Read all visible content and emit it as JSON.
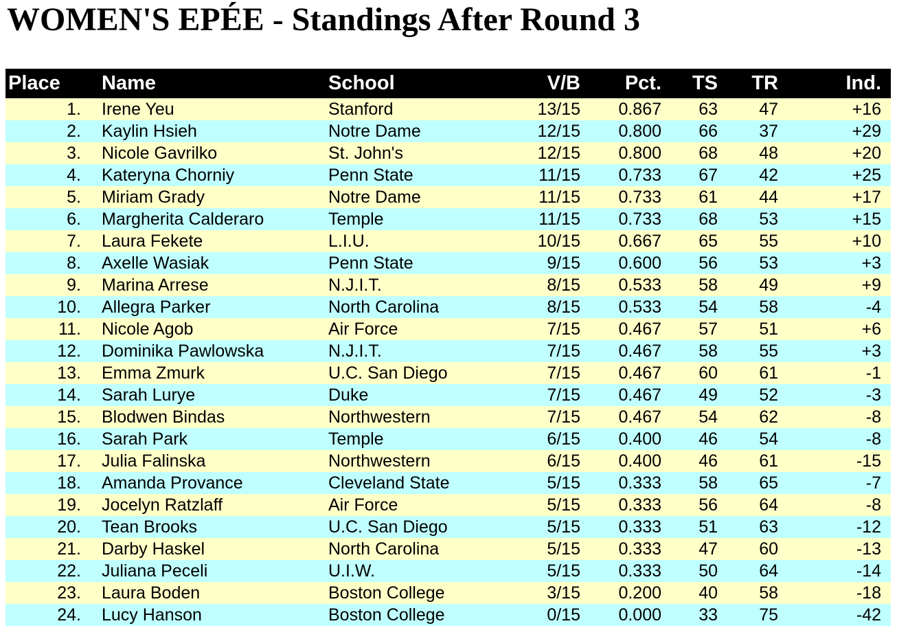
{
  "title": "WOMEN'S EPÉE - Standings After Round 3",
  "colors": {
    "header_bg": "#000000",
    "header_text": "#FFFFFF",
    "row_yellow": "#FFFFC8",
    "row_cyan": "#BFFFFF"
  },
  "table": {
    "columns": [
      "Place",
      "Name",
      "School",
      "V/B",
      "Pct.",
      "TS",
      "TR",
      "Ind."
    ],
    "rows": [
      {
        "place": "1.",
        "name": "Irene Yeu",
        "school": "Stanford",
        "vb": "13/15",
        "pct": "0.867",
        "ts": "63",
        "tr": "47",
        "ind": "+16"
      },
      {
        "place": "2.",
        "name": "Kaylin Hsieh",
        "school": "Notre Dame",
        "vb": "12/15",
        "pct": "0.800",
        "ts": "66",
        "tr": "37",
        "ind": "+29"
      },
      {
        "place": "3.",
        "name": "Nicole Gavrilko",
        "school": "St. John's",
        "vb": "12/15",
        "pct": "0.800",
        "ts": "68",
        "tr": "48",
        "ind": "+20"
      },
      {
        "place": "4.",
        "name": "Kateryna Chorniy",
        "school": "Penn State",
        "vb": "11/15",
        "pct": "0.733",
        "ts": "67",
        "tr": "42",
        "ind": "+25"
      },
      {
        "place": "5.",
        "name": "Miriam Grady",
        "school": "Notre Dame",
        "vb": "11/15",
        "pct": "0.733",
        "ts": "61",
        "tr": "44",
        "ind": "+17"
      },
      {
        "place": "6.",
        "name": "Margherita Calderaro",
        "school": "Temple",
        "vb": "11/15",
        "pct": "0.733",
        "ts": "68",
        "tr": "53",
        "ind": "+15"
      },
      {
        "place": "7.",
        "name": "Laura Fekete",
        "school": "L.I.U.",
        "vb": "10/15",
        "pct": "0.667",
        "ts": "65",
        "tr": "55",
        "ind": "+10"
      },
      {
        "place": "8.",
        "name": "Axelle Wasiak",
        "school": "Penn State",
        "vb": "9/15",
        "pct": "0.600",
        "ts": "56",
        "tr": "53",
        "ind": "+3"
      },
      {
        "place": "9.",
        "name": "Marina Arrese",
        "school": "N.J.I.T.",
        "vb": "8/15",
        "pct": "0.533",
        "ts": "58",
        "tr": "49",
        "ind": "+9"
      },
      {
        "place": "10.",
        "name": "Allegra Parker",
        "school": "North Carolina",
        "vb": "8/15",
        "pct": "0.533",
        "ts": "54",
        "tr": "58",
        "ind": "-4"
      },
      {
        "place": "11.",
        "name": "Nicole Agob",
        "school": "Air Force",
        "vb": "7/15",
        "pct": "0.467",
        "ts": "57",
        "tr": "51",
        "ind": "+6"
      },
      {
        "place": "12.",
        "name": "Dominika Pawlowska",
        "school": "N.J.I.T.",
        "vb": "7/15",
        "pct": "0.467",
        "ts": "58",
        "tr": "55",
        "ind": "+3"
      },
      {
        "place": "13.",
        "name": "Emma Zmurk",
        "school": "U.C. San Diego",
        "vb": "7/15",
        "pct": "0.467",
        "ts": "60",
        "tr": "61",
        "ind": "-1"
      },
      {
        "place": "14.",
        "name": "Sarah Lurye",
        "school": "Duke",
        "vb": "7/15",
        "pct": "0.467",
        "ts": "49",
        "tr": "52",
        "ind": "-3"
      },
      {
        "place": "15.",
        "name": "Blodwen Bindas",
        "school": "Northwestern",
        "vb": "7/15",
        "pct": "0.467",
        "ts": "54",
        "tr": "62",
        "ind": "-8"
      },
      {
        "place": "16.",
        "name": "Sarah Park",
        "school": "Temple",
        "vb": "6/15",
        "pct": "0.400",
        "ts": "46",
        "tr": "54",
        "ind": "-8"
      },
      {
        "place": "17.",
        "name": "Julia Falinska",
        "school": "Northwestern",
        "vb": "6/15",
        "pct": "0.400",
        "ts": "46",
        "tr": "61",
        "ind": "-15"
      },
      {
        "place": "18.",
        "name": "Amanda Provance",
        "school": "Cleveland State",
        "vb": "5/15",
        "pct": "0.333",
        "ts": "58",
        "tr": "65",
        "ind": "-7"
      },
      {
        "place": "19.",
        "name": "Jocelyn Ratzlaff",
        "school": "Air Force",
        "vb": "5/15",
        "pct": "0.333",
        "ts": "56",
        "tr": "64",
        "ind": "-8"
      },
      {
        "place": "20.",
        "name": "Tean Brooks",
        "school": "U.C. San Diego",
        "vb": "5/15",
        "pct": "0.333",
        "ts": "51",
        "tr": "63",
        "ind": "-12"
      },
      {
        "place": "21.",
        "name": "Darby Haskel",
        "school": "North Carolina",
        "vb": "5/15",
        "pct": "0.333",
        "ts": "47",
        "tr": "60",
        "ind": "-13"
      },
      {
        "place": "22.",
        "name": "Juliana Peceli",
        "school": "U.I.W.",
        "vb": "5/15",
        "pct": "0.333",
        "ts": "50",
        "tr": "64",
        "ind": "-14"
      },
      {
        "place": "23.",
        "name": "Laura Boden",
        "school": "Boston College",
        "vb": "3/15",
        "pct": "0.200",
        "ts": "40",
        "tr": "58",
        "ind": "-18"
      },
      {
        "place": "24.",
        "name": "Lucy Hanson",
        "school": "Boston College",
        "vb": "0/15",
        "pct": "0.000",
        "ts": "33",
        "tr": "75",
        "ind": "-42"
      }
    ]
  }
}
